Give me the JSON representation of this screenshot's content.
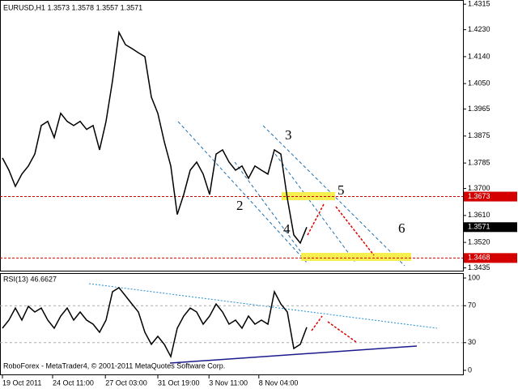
{
  "chart_data": [
    {
      "type": "line",
      "title": "EURUSD,H1  1.3573 1.3578 1.3557 1.3571",
      "ylim": [
        1.3423,
        1.4329
      ],
      "yticks": [
        {
          "value": 1.4315,
          "label": "1.4315"
        },
        {
          "value": 1.423,
          "label": "1.4230"
        },
        {
          "value": 1.414,
          "label": "1.4140"
        },
        {
          "value": 1.405,
          "label": "1.4050"
        },
        1.3965,
        1.3875,
        1.3785,
        {
          "value": 1.37,
          "label": "1.3700"
        },
        {
          "value": 1.361,
          "label": "1.3610"
        },
        {
          "value": 1.352,
          "label": "1.3520"
        },
        1.3435
      ],
      "xlim": [
        -0.375,
        71.125
      ],
      "series": [
        {
          "name": "EURUSD",
          "color": "#000000",
          "values": [
            1.3802,
            1.3761,
            1.3707,
            1.3748,
            1.3775,
            1.3815,
            1.391,
            1.3924,
            1.387,
            1.3951,
            1.3924,
            1.391,
            1.3924,
            1.3897,
            1.391,
            1.3829,
            1.3924,
            1.4059,
            1.4221,
            1.418,
            1.4167,
            1.4153,
            1.414,
            1.4005,
            1.3951,
            1.3856,
            1.3775,
            1.3613,
            1.368,
            1.3761,
            1.3788,
            1.3748,
            1.368,
            1.3815,
            1.3829,
            1.3788,
            1.3761,
            1.3775,
            1.3734,
            1.3775,
            1.3761,
            1.3748,
            1.3829,
            1.3815,
            1.3667,
            1.3545,
            1.3518,
            1.3571
          ]
        }
      ],
      "levels": [
        {
          "value": 1.3673,
          "label": "1.3673",
          "color": "#d40000"
        },
        {
          "value": 1.3468,
          "label": "1.3468",
          "color": "#d40000"
        }
      ],
      "current_price": {
        "value": 1.3571,
        "label": "1.3571"
      },
      "annotations": [
        "2",
        "3",
        "4",
        "5",
        "6"
      ],
      "footer": "RoboForex - MetaTrader4, © 2001-2011 MetaQuotes Software Corp."
    },
    {
      "type": "line",
      "title": "RSI(13) 46.6627",
      "ylim": [
        -5.3,
        105.3
      ],
      "yticks": [
        0,
        30,
        70,
        100
      ],
      "grid_levels": [
        30,
        70
      ],
      "xlim": [
        -0.375,
        71.125
      ],
      "xticks": [
        {
          "value": 0,
          "label": "19 Oct 2011"
        },
        {
          "value": 7.75,
          "label": "24 Oct 11:00"
        },
        {
          "value": 15.9,
          "label": "27 Oct 03:00"
        },
        {
          "value": 24,
          "label": "31 Oct 19:00"
        },
        {
          "value": 31.9,
          "label": "3 Nov 11:00"
        },
        {
          "value": 39.6,
          "label": "8 Nov 04:00"
        }
      ],
      "series": [
        {
          "name": "RSI(13)",
          "color": "#000000",
          "values": [
            45.6,
            54.4,
            67.5,
            54.4,
            69.3,
            63.2,
            67.5,
            54.4,
            45.6,
            58.8,
            67.5,
            54.4,
            63.2,
            54.4,
            50,
            41.2,
            54.4,
            85.1,
            89.5,
            80.7,
            71.9,
            63.2,
            41.2,
            28.1,
            36.8,
            28.1,
            14.9,
            45.6,
            58.8,
            67.5,
            63.2,
            50,
            58.8,
            71.9,
            63.2,
            50,
            54.4,
            45.6,
            58.8,
            50,
            54.4,
            50,
            85.1,
            71.9,
            63.2,
            23.7,
            28.1,
            46.6627
          ]
        }
      ]
    }
  ]
}
